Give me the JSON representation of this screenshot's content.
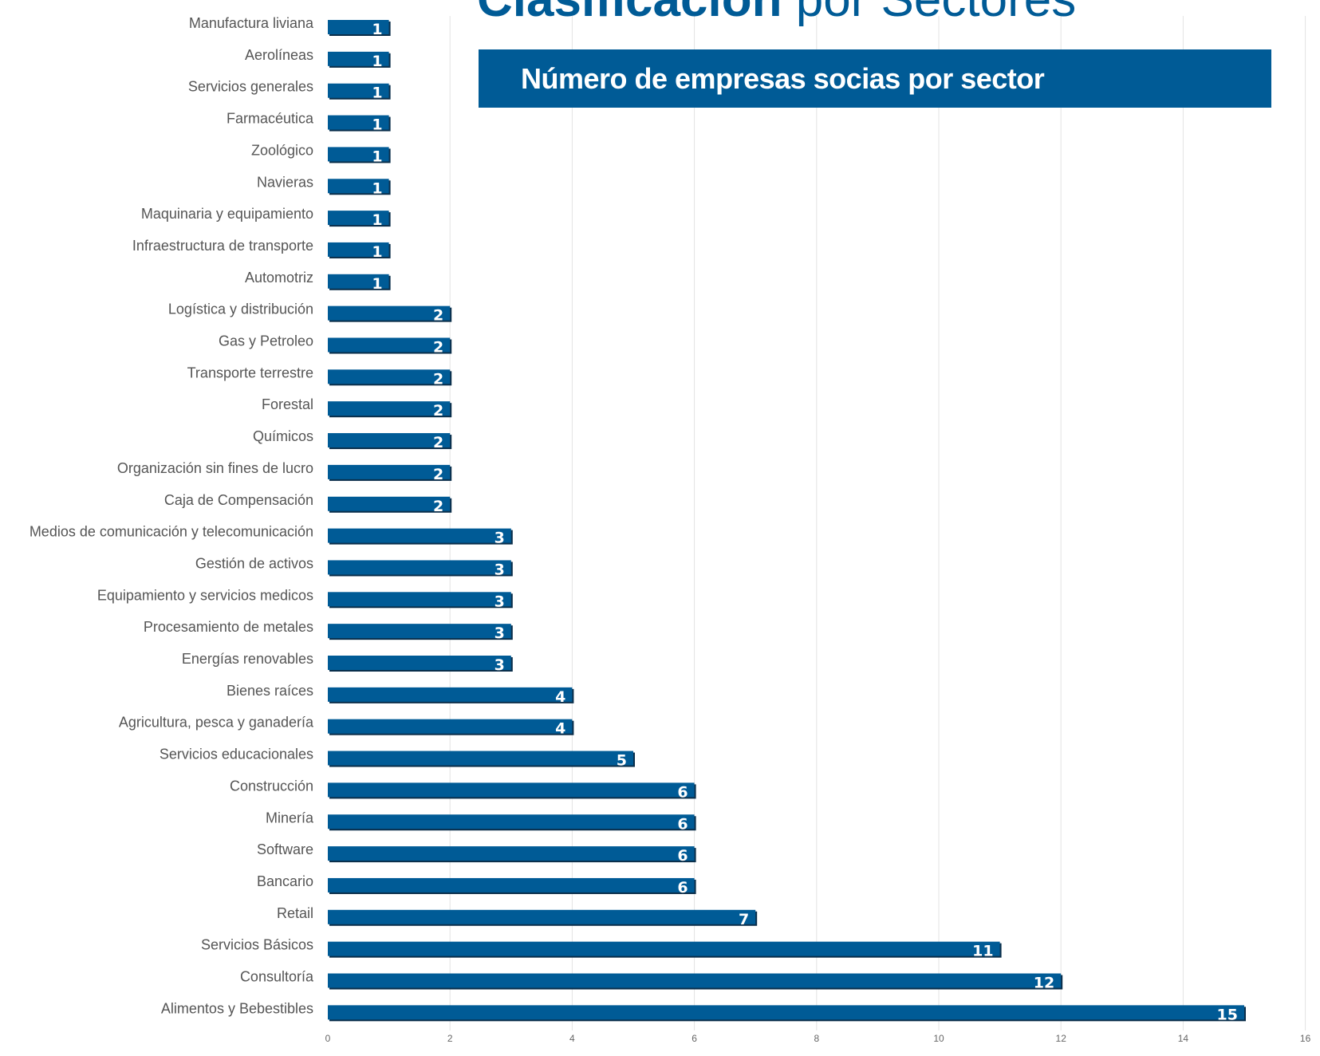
{
  "header": {
    "title_bold": "Clasificación",
    "title_light": "por Sectores",
    "subtitle": "Número de empresas socias por sector"
  },
  "colors": {
    "bar": "#005b96",
    "bar_shadow": "#0a2e4a",
    "gridline": "#e3e3e3"
  },
  "chart_data": {
    "type": "bar",
    "orientation": "horizontal",
    "title": "Número de empresas socias por sector",
    "xlabel": "",
    "ylabel": "",
    "xlim": [
      0,
      16
    ],
    "x_ticks": [
      0,
      2,
      4,
      6,
      8,
      10,
      12,
      14,
      16
    ],
    "grid": true,
    "legend": "none",
    "categories": [
      "Manufactura liviana",
      "Aerolíneas",
      "Servicios generales",
      "Farmacéutica",
      "Zoológico",
      "Navieras",
      "Maquinaria y equipamiento",
      "Infraestructura de transporte",
      "Automotriz",
      "Logística y distribución",
      "Gas y Petroleo",
      "Transporte terrestre",
      "Forestal",
      "Químicos",
      "Organización sin fines de lucro",
      "Caja de Compensación",
      "Medios de comunicación y telecomunicación",
      "Gestión de activos",
      "Equipamiento y servicios medicos",
      "Procesamiento de metales",
      "Energías renovables",
      "Bienes raíces",
      "Agricultura, pesca y ganadería",
      "Servicios educacionales",
      "Construcción",
      "Minería",
      "Software",
      "Bancario",
      "Retail",
      "Servicios Básicos",
      "Consultoría",
      "Alimentos y Bebestibles"
    ],
    "values": [
      1,
      1,
      1,
      1,
      1,
      1,
      1,
      1,
      1,
      2,
      2,
      2,
      2,
      2,
      2,
      2,
      3,
      3,
      3,
      3,
      3,
      4,
      4,
      5,
      6,
      6,
      6,
      6,
      7,
      11,
      12,
      15
    ]
  }
}
